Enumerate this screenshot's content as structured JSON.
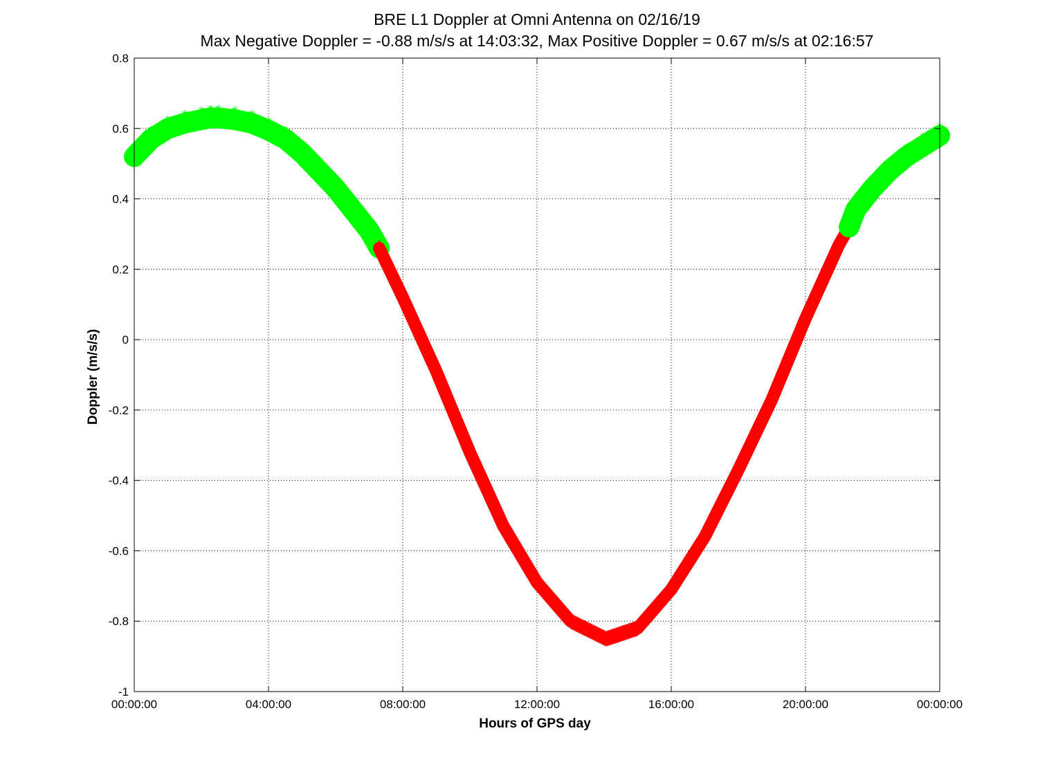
{
  "chart_data": {
    "type": "line",
    "title": "BRE  L1 Doppler at Omni Antenna on 02/16/19",
    "subtitle": "Max Negative Doppler = -0.88 m/s/s  at 14:03:32,   Max Positive Doppler = 0.67 m/s/s  at 02:16:57",
    "xlabel": "Hours of GPS day",
    "ylabel": "Doppler (m/s/s)",
    "xlim": [
      0,
      24
    ],
    "ylim": [
      -1,
      0.8
    ],
    "x_tick_labels": [
      "00:00:00",
      "04:00:00",
      "08:00:00",
      "12:00:00",
      "16:00:00",
      "20:00:00",
      "00:00:00"
    ],
    "x_ticks_hours": [
      0,
      4,
      8,
      12,
      16,
      20,
      24
    ],
    "y_ticks": [
      -1,
      -0.8,
      -0.6,
      -0.4,
      -0.2,
      0,
      0.2,
      0.4,
      0.6,
      0.8
    ],
    "grid": true,
    "colors": {
      "positive_marker": "#00ff00",
      "negative_line": "#ff0000"
    },
    "series": [
      {
        "color": "#00ff00",
        "marker": "asterisk",
        "x": [
          0,
          0.5,
          1,
          1.5,
          2,
          2.27,
          2.5,
          3,
          3.5,
          4,
          4.5,
          5,
          5.5,
          6,
          6.5,
          7,
          7.3
        ],
        "y": [
          0.52,
          0.57,
          0.6,
          0.615,
          0.625,
          0.63,
          0.63,
          0.625,
          0.615,
          0.595,
          0.57,
          0.53,
          0.48,
          0.43,
          0.37,
          0.31,
          0.26
        ]
      },
      {
        "color": "#ff0000",
        "marker": "line",
        "x": [
          7.3,
          8,
          9,
          10,
          11,
          12,
          13,
          14.06,
          15,
          16,
          17,
          18,
          19,
          20,
          21,
          21.3
        ],
        "y": [
          0.26,
          0.12,
          -0.09,
          -0.32,
          -0.53,
          -0.69,
          -0.8,
          -0.85,
          -0.82,
          -0.71,
          -0.56,
          -0.37,
          -0.17,
          0.06,
          0.27,
          0.32
        ]
      },
      {
        "color": "#00ff00",
        "marker": "asterisk",
        "x": [
          21.3,
          21.5,
          22,
          22.5,
          23,
          23.5,
          24
        ],
        "y": [
          0.32,
          0.37,
          0.43,
          0.48,
          0.52,
          0.55,
          0.58
        ]
      }
    ]
  }
}
